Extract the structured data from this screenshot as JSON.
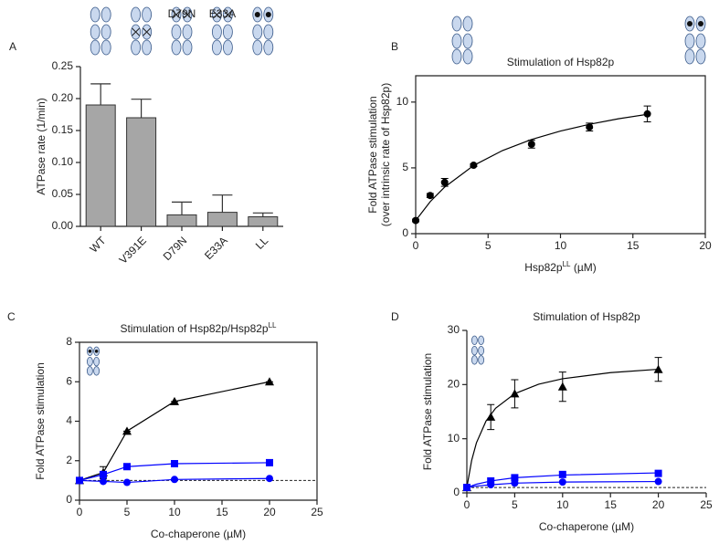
{
  "chart_data": [
    {
      "type": "bar",
      "panel": "A",
      "ylabel": "ATPase rate (1/min)",
      "categories": [
        "WT",
        "V391E",
        "D79N",
        "E33A",
        "LL"
      ],
      "values": [
        0.19,
        0.17,
        0.018,
        0.022,
        0.015
      ],
      "errors": [
        0.033,
        0.029,
        0.02,
        0.027,
        0.006
      ],
      "color": "#a6a6a6",
      "ylim": [
        0,
        0.25
      ],
      "yticks": [
        {
          "value": 0,
          "label": "0.00"
        },
        {
          "value": 0.05,
          "label": "0.05"
        },
        {
          "value": 0.1,
          "label": "0.10"
        },
        {
          "value": 0.15,
          "label": "0.15"
        },
        {
          "value": 0.2,
          "label": "0.20"
        },
        {
          "value": 0.25,
          "label": "0.25"
        }
      ],
      "annotations": [
        "D79N",
        "E33A"
      ]
    },
    {
      "type": "scatter",
      "panel": "B",
      "title": "Stimulation of Hsp82p",
      "xlabel": {
        "text": "Hsp82p",
        "sup": "LL",
        "after": " (µM)"
      },
      "ylabel": [
        "Fold ATPase stimulation",
        "(over intrinsic rate of Hsp82p)"
      ],
      "xlim": [
        0,
        20
      ],
      "xticks": [
        0,
        5,
        10,
        15,
        20
      ],
      "ylim": [
        0,
        12
      ],
      "yticks": [
        0,
        5,
        10
      ],
      "frame": true,
      "series": [
        {
          "color": "#000000",
          "marker": "circle",
          "x": [
            0,
            1,
            2,
            4,
            8,
            12,
            16
          ],
          "values": [
            1.0,
            2.9,
            3.9,
            5.2,
            6.8,
            8.1,
            9.1
          ],
          "errors": [
            0.1,
            0.15,
            0.3,
            0.1,
            0.3,
            0.3,
            0.6
          ],
          "curve": {
            "x": [
              0,
              1,
              2,
              4,
              6,
              8,
              10,
              12,
              14,
              16
            ],
            "values": [
              1.0,
              2.43,
              3.54,
              5.18,
              6.32,
              7.16,
              7.8,
              8.31,
              8.73,
              9.07
            ]
          }
        }
      ]
    },
    {
      "type": "line",
      "panel": "C",
      "title": {
        "text": "Stimulation of Hsp82p/Hsp82p",
        "sup": "LL"
      },
      "xlabel": "Co-chaperone (µM)",
      "ylabel": "Fold ATPase stimulation",
      "xlim": [
        0,
        25
      ],
      "xticks": [
        0,
        5,
        10,
        15,
        20,
        25
      ],
      "ylim": [
        0,
        8
      ],
      "yticks": [
        0,
        2,
        4,
        6,
        8
      ],
      "frame": true,
      "hline": 1,
      "series": [
        {
          "color": "#000000",
          "marker": "triangle",
          "x": [
            0,
            2.5,
            5,
            10,
            20
          ],
          "values": [
            1.0,
            1.4,
            3.5,
            5.0,
            6.0
          ],
          "errors": [
            0,
            0.3,
            0,
            0,
            0
          ]
        },
        {
          "color": "#0000ff",
          "marker": "square",
          "x": [
            0,
            2.5,
            5,
            10,
            20
          ],
          "values": [
            1.0,
            1.3,
            1.7,
            1.85,
            1.9
          ]
        },
        {
          "color": "#0000ff",
          "marker": "circle",
          "x": [
            0,
            2.5,
            5,
            10,
            20
          ],
          "values": [
            1.0,
            0.95,
            0.9,
            1.05,
            1.1
          ]
        }
      ]
    },
    {
      "type": "scatter",
      "panel": "D",
      "title": "Stimulation of Hsp82p",
      "xlabel": "Co-chaperone (µM)",
      "ylabel": "Fold ATPase stimulation",
      "xlim": [
        0,
        25
      ],
      "xticks": [
        0,
        5,
        10,
        15,
        20,
        25
      ],
      "ylim": [
        0,
        30
      ],
      "yticks": [
        0,
        10,
        20,
        30
      ],
      "frame": false,
      "hline": 1,
      "series": [
        {
          "color": "#000000",
          "marker": "triangle",
          "x": [
            0,
            2.5,
            5,
            10,
            20
          ],
          "values": [
            1.0,
            14.0,
            18.3,
            19.6,
            22.8
          ],
          "errors": [
            0,
            2.3,
            2.6,
            2.7,
            2.2
          ],
          "curve": {
            "x": [
              0,
              0.5,
              1,
              2,
              3,
              5,
              7.5,
              10,
              15,
              20
            ],
            "values": [
              1.0,
              5.98,
              9.24,
              13.26,
              15.63,
              18.32,
              20.07,
              21.08,
              22.21,
              22.83
            ]
          }
        },
        {
          "color": "#0000ff",
          "marker": "square",
          "x": [
            0,
            2.5,
            5,
            10,
            20
          ],
          "values": [
            1.0,
            2.2,
            2.8,
            3.4,
            3.6
          ],
          "curve": {
            "x": [
              0,
              1,
              2.5,
              5,
              10,
              20
            ],
            "values": [
              1.0,
              1.6,
              2.2,
              2.8,
              3.3,
              3.7
            ]
          }
        },
        {
          "color": "#0000ff",
          "marker": "circle",
          "x": [
            0,
            2.5,
            5,
            10,
            20
          ],
          "values": [
            1.0,
            1.5,
            1.8,
            2.0,
            2.1
          ],
          "curve": {
            "x": [
              0,
              1,
              2.5,
              5,
              10,
              20
            ],
            "values": [
              1.0,
              1.25,
              1.5,
              1.8,
              2.0,
              2.1
            ]
          }
        }
      ]
    }
  ]
}
